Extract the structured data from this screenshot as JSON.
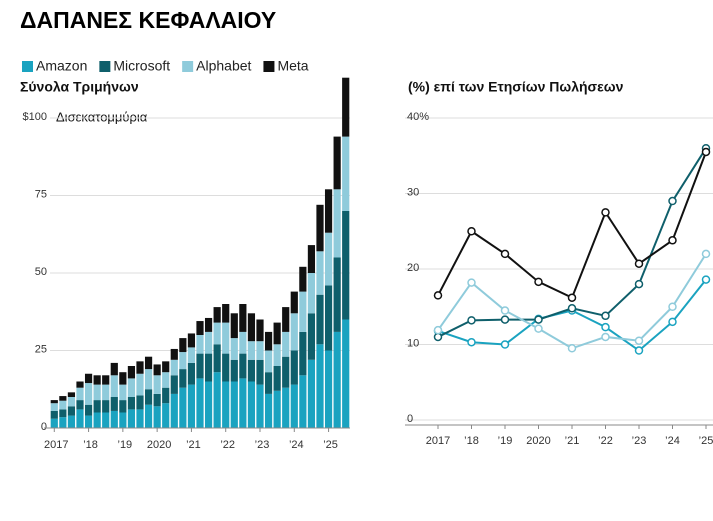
{
  "title": "ΔΑΠΑΝΕΣ ΚΕΦΑΛΑΙΟΥ",
  "chart_data": [
    {
      "type": "bar",
      "stacked": true,
      "subtitle": "Σύνολα Τριμήνων",
      "unit_label": "Δισεκατομμύρια",
      "categories": [
        "2017",
        null,
        null,
        null,
        "’18",
        null,
        null,
        null,
        "’19",
        null,
        null,
        null,
        "2020",
        null,
        null,
        null,
        "’21",
        null,
        null,
        null,
        "’22",
        null,
        null,
        null,
        "’23",
        null,
        null,
        null,
        "’24",
        null,
        null,
        null,
        "’25",
        null,
        null
      ],
      "series": [
        {
          "name": "Amazon",
          "color": "#1aa3c0",
          "values": [
            3,
            3.5,
            4,
            6,
            4,
            5,
            5,
            5.5,
            5,
            6,
            6,
            7.5,
            7,
            8,
            11,
            13,
            14,
            16,
            15,
            18,
            15,
            15,
            16,
            15,
            14,
            11,
            12,
            13,
            14,
            17,
            22,
            27,
            25,
            31,
            35
          ]
        },
        {
          "name": "Microsoft",
          "color": "#0f5f6b",
          "values": [
            2.5,
            2.5,
            3,
            3,
            3.5,
            4,
            4,
            4.5,
            4,
            4,
            4.5,
            5,
            4,
            5,
            6,
            6,
            7,
            8,
            9,
            9,
            9,
            7,
            8,
            7,
            8,
            7,
            8,
            10,
            11,
            14,
            15,
            16,
            21,
            24,
            35
          ]
        },
        {
          "name": "Alphabet",
          "color": "#8fcbdb",
          "values": [
            2.5,
            2.8,
            3,
            4,
            7,
            5,
            5,
            7,
            5,
            6,
            7,
            6.5,
            6,
            5,
            5,
            5.5,
            5,
            6,
            7,
            7,
            10,
            7,
            7,
            6,
            6,
            7,
            7,
            8,
            12,
            13,
            13,
            14,
            17,
            22,
            24
          ]
        },
        {
          "name": "Meta",
          "color": "#111111",
          "values": [
            1,
            1.5,
            1.5,
            2,
            3,
            3,
            3,
            4,
            4,
            4,
            4,
            4,
            3.5,
            3.5,
            3.5,
            4.5,
            4.5,
            4.5,
            4.5,
            5,
            6,
            8,
            9,
            9,
            7,
            6,
            7,
            8,
            7,
            8,
            9,
            15,
            14,
            17,
            19
          ]
        }
      ],
      "ylim": [
        0,
        110
      ],
      "yticks": [
        0,
        25,
        50,
        75,
        {
          "value": 100,
          "label": "$100"
        }
      ],
      "grid": true
    },
    {
      "type": "line",
      "title": "(%) επί των Ετησίων Πωλήσεων",
      "categories": [
        "2017",
        "’18",
        "’19",
        "2020",
        "’21",
        "’22",
        "’23",
        "’24",
        "’25"
      ],
      "series": [
        {
          "name": "Amazon",
          "color": "#1aa3c0",
          "values": [
            11.8,
            10.3,
            10,
            13.4,
            14.5,
            12.3,
            9.2,
            13,
            18.6
          ]
        },
        {
          "name": "Microsoft",
          "color": "#0f5f6b",
          "values": [
            11,
            13.2,
            13.3,
            13.3,
            14.8,
            13.8,
            18,
            29,
            36
          ]
        },
        {
          "name": "Alphabet",
          "color": "#8fcbdb",
          "values": [
            11.9,
            18.2,
            14.5,
            12.1,
            9.5,
            11,
            10.5,
            15,
            22
          ]
        },
        {
          "name": "Meta",
          "color": "#111111",
          "values": [
            16.5,
            25,
            22,
            18.3,
            16.2,
            27.5,
            20.7,
            23.8,
            35.5
          ]
        }
      ],
      "ylim": [
        0,
        40
      ],
      "yticks": [
        0,
        10,
        20,
        30,
        {
          "value": 40,
          "label": "40%"
        }
      ],
      "grid": true
    }
  ]
}
